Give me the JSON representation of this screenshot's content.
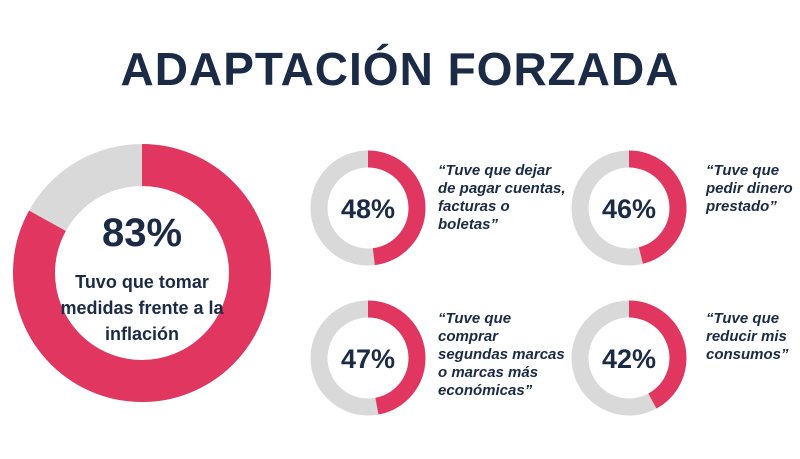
{
  "title": "ADAPTACIÓN FORZADA",
  "colors": {
    "accent": "#e0365f",
    "track": "#d9d9d9",
    "text": "#1b2a45"
  },
  "main": {
    "percent": "83%",
    "label": "Tuvo que tomar medidas frente a la inflación"
  },
  "items": [
    {
      "percent": "48%",
      "quote": "“Tuve que dejar\nde pagar cuentas,\nfacturas o\nboletas”"
    },
    {
      "percent": "46%",
      "quote": "“Tuve que\npedir dinero\nprestado”"
    },
    {
      "percent": "47%",
      "quote": "“Tuve que\ncomprar\nsegundas marcas\no marcas más\neconómicas”"
    },
    {
      "percent": "42%",
      "quote": "“Tuve que\nreducir mis\nconsumos”"
    }
  ],
  "chart_data": [
    {
      "type": "pie",
      "categories": [
        "Tuvo que tomar medidas frente a la inflación",
        ""
      ],
      "values": [
        83,
        17
      ]
    },
    {
      "type": "pie",
      "categories": [
        "Tuve que dejar de pagar cuentas, facturas o boletas",
        ""
      ],
      "values": [
        48,
        52
      ]
    },
    {
      "type": "pie",
      "categories": [
        "Tuve que pedir dinero prestado",
        ""
      ],
      "values": [
        46,
        54
      ]
    },
    {
      "type": "pie",
      "categories": [
        "Tuve que comprar segundas marcas o marcas más económicas",
        ""
      ],
      "values": [
        47,
        53
      ]
    },
    {
      "type": "pie",
      "categories": [
        "Tuve que reducir mis consumos",
        ""
      ],
      "values": [
        42,
        58
      ]
    }
  ]
}
